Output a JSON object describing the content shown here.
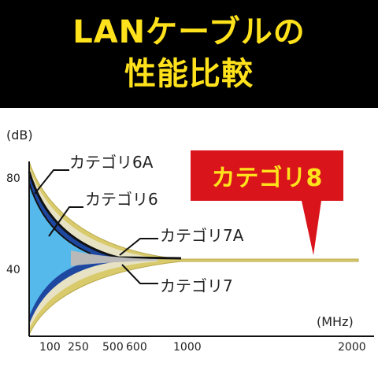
{
  "header": {
    "title_line1": "LANケーブルの",
    "title_line2": "性能比較"
  },
  "colors": {
    "banner_bg": "#000000",
    "title_text": "#ffe21c",
    "cat8_fill": "#d9141b",
    "cat8_text": "#ffe21c",
    "cat7_band": "#d9ca6c",
    "cat6a_band": "#1e47a0",
    "cat6_band": "#56b9ec"
  },
  "chart_data": {
    "type": "line",
    "ylabel": "(dB)",
    "xlabel": "(MHz)",
    "yticks": [
      "80",
      "40"
    ],
    "xticks": [
      "100",
      "250",
      "500",
      "600",
      "1000",
      "2000"
    ],
    "series": [
      {
        "name": "カテゴリ6A",
        "max_frequency_mhz": 500
      },
      {
        "name": "カテゴリ6",
        "max_frequency_mhz": 250
      },
      {
        "name": "カテゴリ7A",
        "max_frequency_mhz": 1000
      },
      {
        "name": "カテゴリ7",
        "max_frequency_mhz": 600
      },
      {
        "name": "カテゴリ8",
        "max_frequency_mhz": 2000
      }
    ]
  }
}
